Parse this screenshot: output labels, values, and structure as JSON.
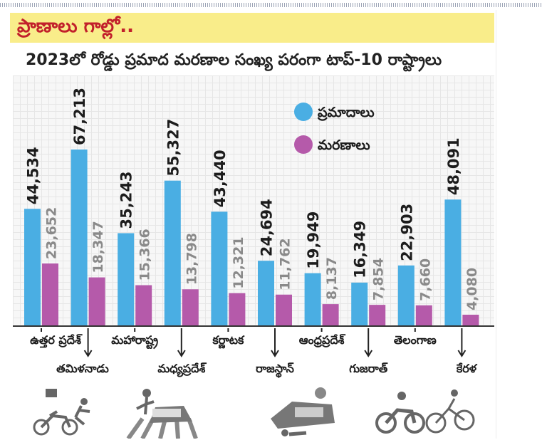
{
  "header": {
    "title": "ప్రాణాలు గాల్లో.."
  },
  "colors": {
    "accidents": "#4aaee3",
    "deaths": "#b55aaa",
    "header_bg": "#f9ed8a",
    "title": "#c2202b"
  },
  "chart_data": {
    "type": "bar",
    "title": "2023లో రోడ్డు ప్రమాద మరణాల సంఖ్య పరంగా టాప్-10 రాష్ట్రాలు",
    "categories": [
      "ఉత్తర ప్రదేశ్",
      "తమిళనాడు",
      "మహారాష్ట్ర",
      "మధ్యప్రదేశ్",
      "కర్ణాటక",
      "రాజస్థాన్",
      "ఆంధ్రప్రదేశ్",
      "గుజరాత్",
      "తెలంగాణ",
      "కేరళ"
    ],
    "series": [
      {
        "name": "ప్రమాదాలు",
        "values": [
          44534,
          67213,
          35243,
          55327,
          43440,
          24694,
          19949,
          16349,
          22903,
          48091
        ],
        "labels": [
          "44,534",
          "67,213",
          "35,243",
          "55,327",
          "43,440",
          "24,694",
          "19,949",
          "16,349",
          "22,903",
          "48,091"
        ]
      },
      {
        "name": "మరణాలు",
        "values": [
          23652,
          18347,
          15366,
          13798,
          12321,
          11762,
          8137,
          7854,
          7660,
          4080
        ],
        "labels": [
          "23,652",
          "18,347",
          "15,366",
          "13,798",
          "12,321",
          "11,762",
          "8,137",
          "7,854",
          "7,660",
          "4,080"
        ]
      }
    ],
    "ylim": [
      0,
      70000
    ],
    "legend": "top-right",
    "grid": true
  },
  "illustrations": [
    "motorcycle-crash-icon",
    "car-pedestrian-crash-icon",
    "truck-crash-icon",
    "bike-collision-icon"
  ]
}
